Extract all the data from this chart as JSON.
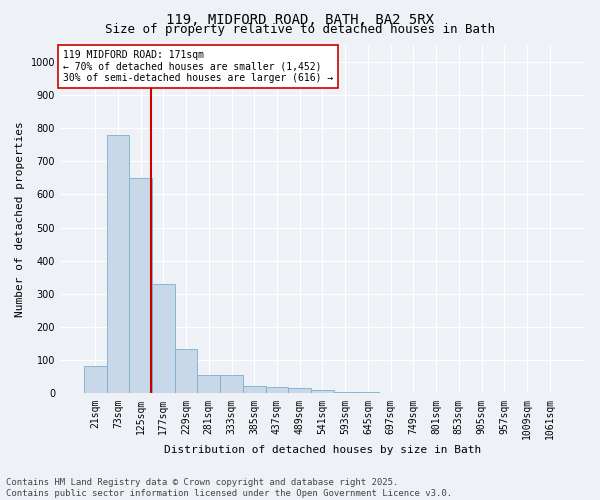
{
  "title_line1": "119, MIDFORD ROAD, BATH, BA2 5RX",
  "title_line2": "Size of property relative to detached houses in Bath",
  "xlabel": "Distribution of detached houses by size in Bath",
  "ylabel": "Number of detached properties",
  "categories": [
    "21sqm",
    "73sqm",
    "125sqm",
    "177sqm",
    "229sqm",
    "281sqm",
    "333sqm",
    "385sqm",
    "437sqm",
    "489sqm",
    "541sqm",
    "593sqm",
    "645sqm",
    "697sqm",
    "749sqm",
    "801sqm",
    "853sqm",
    "905sqm",
    "957sqm",
    "1009sqm",
    "1061sqm"
  ],
  "values": [
    82,
    780,
    650,
    330,
    135,
    55,
    55,
    22,
    18,
    15,
    10,
    5,
    5,
    0,
    0,
    0,
    0,
    0,
    0,
    0,
    0
  ],
  "bar_color": "#c8d8e8",
  "bar_edge_color": "#7ab0cc",
  "vline_color": "#cc0000",
  "vline_x": 2.46,
  "annotation_text": "119 MIDFORD ROAD: 171sqm\n← 70% of detached houses are smaller (1,452)\n30% of semi-detached houses are larger (616) →",
  "annotation_box_facecolor": "#ffffff",
  "annotation_box_edgecolor": "#cc0000",
  "ylim": [
    0,
    1050
  ],
  "yticks": [
    0,
    100,
    200,
    300,
    400,
    500,
    600,
    700,
    800,
    900,
    1000
  ],
  "background_color": "#eef2f7",
  "grid_color": "#ffffff",
  "footer_text": "Contains HM Land Registry data © Crown copyright and database right 2025.\nContains public sector information licensed under the Open Government Licence v3.0.",
  "title_fontsize": 10,
  "subtitle_fontsize": 9,
  "axis_label_fontsize": 8,
  "tick_fontsize": 7,
  "annotation_fontsize": 7,
  "footer_fontsize": 6.5
}
